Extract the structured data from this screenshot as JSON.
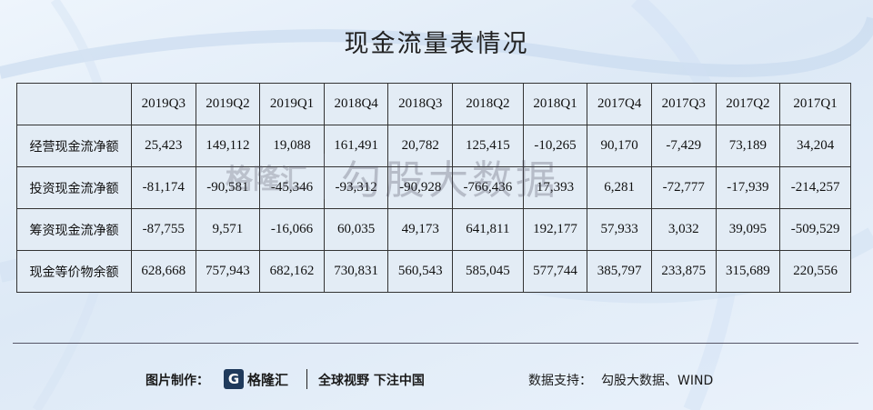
{
  "title": "现金流量表情况",
  "table": {
    "header": [
      "",
      "2019Q3",
      "2019Q2",
      "2019Q1",
      "2018Q4",
      "2018Q3",
      "2018Q2",
      "2018Q1",
      "2017Q4",
      "2017Q3",
      "2017Q2",
      "2017Q1"
    ],
    "rows": [
      [
        "经营现金流净额",
        "25,423",
        "149,112",
        "19,088",
        "161,491",
        "20,782",
        "125,415",
        "-10,265",
        "90,170",
        "-7,429",
        "73,189",
        "34,204"
      ],
      [
        "投资现金流净额",
        "-81,174",
        "-90,581",
        "-45,346",
        "-93,312",
        "-90,928",
        "-766,436",
        "17,393",
        "6,281",
        "-72,777",
        "-17,939",
        "-214,257"
      ],
      [
        "筹资现金流净额",
        "-87,755",
        "9,571",
        "-16,066",
        "60,035",
        "49,173",
        "641,811",
        "192,177",
        "57,933",
        "3,032",
        "39,095",
        "-509,529"
      ],
      [
        "现金等价物余额",
        "628,668",
        "757,943",
        "682,162",
        "730,831",
        "560,543",
        "585,045",
        "577,744",
        "385,797",
        "233,875",
        "315,689",
        "220,556"
      ]
    ]
  },
  "watermark": {
    "logo": "格隆汇",
    "text": "勾股大数据"
  },
  "footer": {
    "made_label": "图片制作：",
    "logo_mark": "G",
    "logo_name": "格隆汇",
    "slogan": "全球视野 下注中国",
    "support_label": "数据支持：",
    "support_value": "勾股大数据、WIND"
  }
}
